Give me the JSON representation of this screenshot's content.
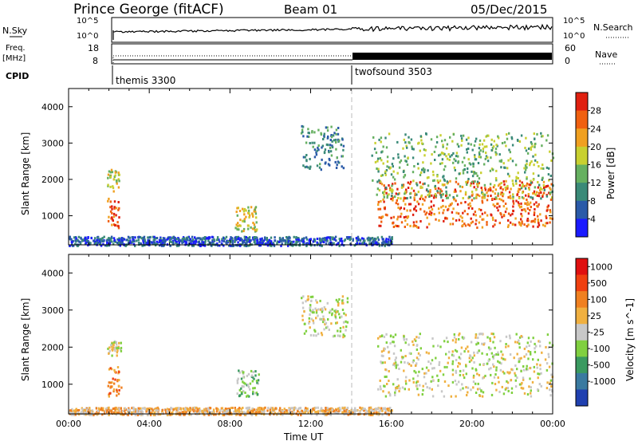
{
  "header": {
    "station": "Prince George (fitACF)",
    "beam": "Beam 01",
    "date": "05/Dec/2015"
  },
  "top_panels": {
    "nsky_label": "N.Sky",
    "nsky_ticks": [
      "10^5",
      "10^0"
    ],
    "nsearch_label": "N.Search",
    "nsearch_ticks": [
      "10^5",
      "10^0"
    ],
    "freq_label": "Freq.",
    "freq_unit": "[MHz]",
    "freq_ticks": [
      "18",
      "8"
    ],
    "nave_label": "Nave",
    "nave_ticks": [
      "60",
      "0"
    ],
    "cpid_label": "CPID",
    "modes": [
      {
        "name": "themis 3300",
        "start_hour": 2.0
      },
      {
        "name": "twofsound 3503",
        "start_hour": 14.0
      }
    ]
  },
  "chart_data": [
    {
      "type": "heatmap",
      "title": "",
      "ylabel": "Slant Range [km]",
      "ylim": [
        200,
        4500
      ],
      "yticks": [
        1000,
        2000,
        3000,
        4000
      ],
      "xlim": [
        0,
        24
      ],
      "colorbar": {
        "label": "Power [dB]",
        "ticks": [
          "4",
          "8",
          "12",
          "16",
          "20",
          "24",
          "28"
        ],
        "colors": [
          "#1a1aff",
          "#2a5aa8",
          "#3a8a78",
          "#66b060",
          "#c8d030",
          "#f0a020",
          "#f06010",
          "#e02010"
        ]
      },
      "echo_regions": [
        {
          "t0": 1.9,
          "t1": 2.5,
          "r0": 650,
          "r1": 1500,
          "level": 6
        },
        {
          "t0": 1.9,
          "t1": 2.5,
          "r0": 1700,
          "r1": 2300,
          "level": 4
        },
        {
          "t0": 8.2,
          "t1": 9.3,
          "r0": 600,
          "r1": 1300,
          "level": 4
        },
        {
          "t0": 11.5,
          "t1": 13.6,
          "r0": 2300,
          "r1": 3500,
          "level": 2
        },
        {
          "t0": 15.3,
          "t1": 24.0,
          "r0": 700,
          "r1": 2000,
          "level": 6
        },
        {
          "t0": 15.0,
          "t1": 24.0,
          "r0": 1500,
          "r1": 3300,
          "level": 3
        },
        {
          "t0": 0.0,
          "t1": 16.0,
          "r0": 200,
          "r1": 450,
          "level": 1
        }
      ]
    },
    {
      "type": "heatmap",
      "title": "",
      "xlabel": "Time UT",
      "ylabel": "Slant Range [km]",
      "ylim": [
        200,
        4500
      ],
      "yticks": [
        1000,
        2000,
        3000,
        4000
      ],
      "xlim": [
        0,
        24
      ],
      "xticks": [
        "00:00",
        "04:00",
        "08:00",
        "12:00",
        "16:00",
        "20:00",
        "00:00"
      ],
      "colorbar": {
        "label": "Velocity [m s^-1]",
        "ticks": [
          "1000",
          "500",
          "100",
          "25",
          "-25",
          "-100",
          "-500",
          "-1000"
        ],
        "colors": [
          "#2040b0",
          "#3a7aa0",
          "#3a9a60",
          "#80d040",
          "#c8c8c8",
          "#f0b040",
          "#f08020",
          "#f04010",
          "#e01010"
        ]
      },
      "echo_regions": [
        {
          "t0": 1.9,
          "t1": 2.6,
          "r0": 700,
          "r1": 1500,
          "level": 6
        },
        {
          "t0": 1.9,
          "t1": 2.6,
          "r0": 1800,
          "r1": 2200,
          "level": 4
        },
        {
          "t0": 8.3,
          "t1": 9.4,
          "r0": 700,
          "r1": 1400,
          "level": 3
        },
        {
          "t0": 11.5,
          "t1": 13.8,
          "r0": 2300,
          "r1": 3400,
          "level": 4
        },
        {
          "t0": 15.3,
          "t1": 24.0,
          "r0": 700,
          "r1": 2400,
          "level": 4
        },
        {
          "t0": 0.0,
          "t1": 16.0,
          "r0": 200,
          "r1": 400,
          "level": 5
        }
      ]
    }
  ]
}
